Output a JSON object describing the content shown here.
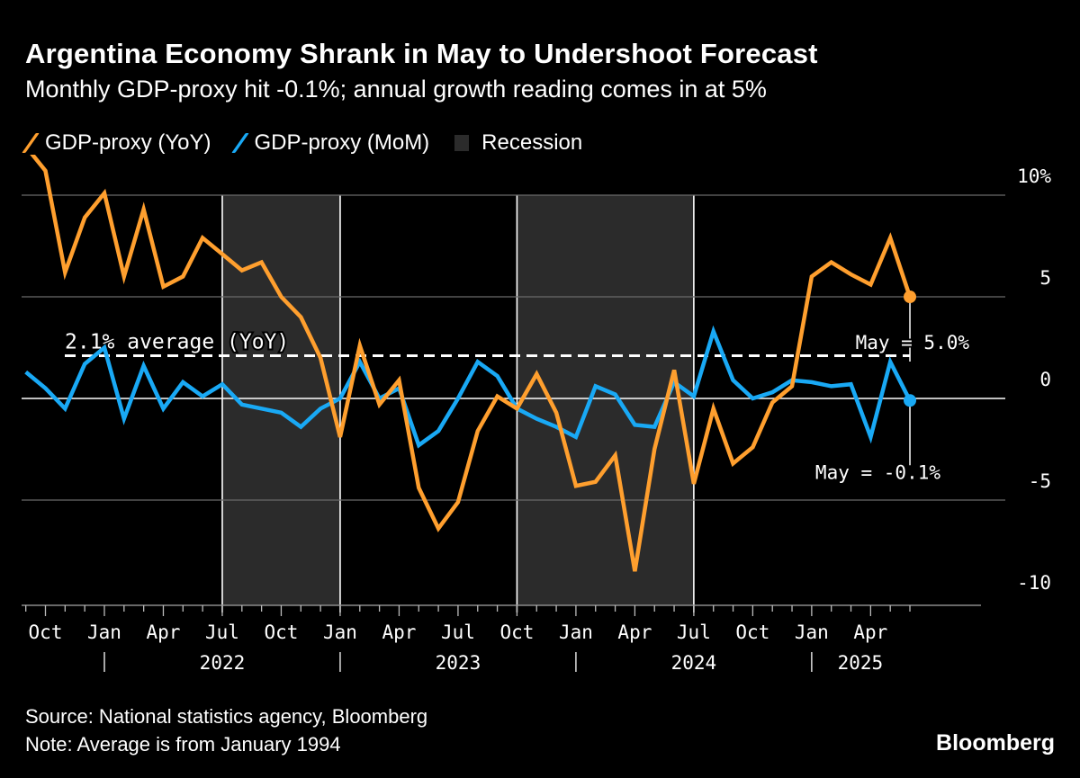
{
  "header": {
    "title": "Argentina Economy Shrank in May to Undershoot Forecast",
    "subtitle": "Monthly GDP-proxy hit -0.1%; annual growth reading comes in at 5%"
  },
  "legend": [
    {
      "label": "GDP-proxy (YoY)",
      "kind": "line",
      "color": "#ff9f2e"
    },
    {
      "label": "GDP-proxy (MoM)",
      "kind": "line",
      "color": "#19a9f5"
    },
    {
      "label": "Recession",
      "kind": "box",
      "color": "#2b2b2b"
    }
  ],
  "footer": {
    "source": "Source: National statistics agency, Bloomberg",
    "note": "Note: Average is from January 1994",
    "logo": "Bloomberg"
  },
  "chart_data": {
    "type": "line",
    "title": "Argentina Economy Shrank in May to Undershoot Forecast",
    "subtitle": "Monthly GDP-proxy hit -0.1%; annual growth reading comes in at 5%",
    "x_start": "2021-08",
    "x_end": "2025-05",
    "ylim": [
      -10,
      11
    ],
    "y_ticks": [
      {
        "value": 10,
        "label": "10%"
      },
      {
        "value": 5,
        "label": "5"
      },
      {
        "value": 0,
        "label": "0"
      },
      {
        "value": -5,
        "label": "-5"
      },
      {
        "value": -10,
        "label": "-10"
      }
    ],
    "x_tick_labels": [
      "Oct",
      "Jan",
      "Apr",
      "Jul",
      "Oct",
      "Jan",
      "Apr",
      "Jul",
      "Oct",
      "Jan",
      "Apr",
      "Jul",
      "Oct",
      "Jan",
      "Apr"
    ],
    "year_labels": [
      "2022",
      "2023",
      "2024",
      "2025"
    ],
    "grid": true,
    "legend_position": "top-left",
    "series": [
      {
        "name": "GDP-proxy (YoY)",
        "color": "#ff9f2e",
        "values": [
          12.4,
          11.2,
          6.2,
          8.9,
          10.1,
          6.0,
          9.3,
          5.5,
          6.0,
          7.9,
          7.1,
          6.3,
          6.7,
          5.0,
          4.0,
          2.0,
          -1.9,
          2.6,
          -0.3,
          0.9,
          -4.4,
          -6.4,
          -5.1,
          -1.6,
          0.1,
          -0.5,
          1.2,
          -0.7,
          -4.3,
          -4.1,
          -2.8,
          -8.5,
          -2.5,
          1.4,
          -4.2,
          -0.5,
          -3.2,
          -2.4,
          -0.2,
          0.6,
          6.0,
          6.7,
          6.1,
          5.6,
          7.9,
          5.0
        ]
      },
      {
        "name": "GDP-proxy (MoM)",
        "color": "#19a9f5",
        "values": [
          1.3,
          0.5,
          -0.5,
          1.7,
          2.5,
          -1.0,
          1.6,
          -0.5,
          0.8,
          0.1,
          0.7,
          -0.3,
          -0.5,
          -0.7,
          -1.4,
          -0.5,
          0.0,
          1.8,
          0.0,
          0.5,
          -2.3,
          -1.6,
          0.0,
          1.8,
          1.1,
          -0.5,
          -1.0,
          -1.4,
          -1.9,
          0.6,
          0.2,
          -1.3,
          -1.4,
          0.8,
          0.1,
          3.3,
          0.9,
          0.0,
          0.3,
          0.9,
          0.8,
          0.6,
          0.7,
          -1.9,
          1.8,
          -0.1
        ]
      }
    ],
    "recessions": [
      {
        "start": "2022-07",
        "end": "2023-01"
      },
      {
        "start": "2023-10",
        "end": "2024-07"
      }
    ],
    "average_line": {
      "value": 2.1,
      "label": "2.1% average (YoY)"
    },
    "annotations": [
      {
        "series": "GDP-proxy (YoY)",
        "label": "May = 5.0%"
      },
      {
        "series": "GDP-proxy (MoM)",
        "label": "May = -0.1%"
      }
    ]
  }
}
